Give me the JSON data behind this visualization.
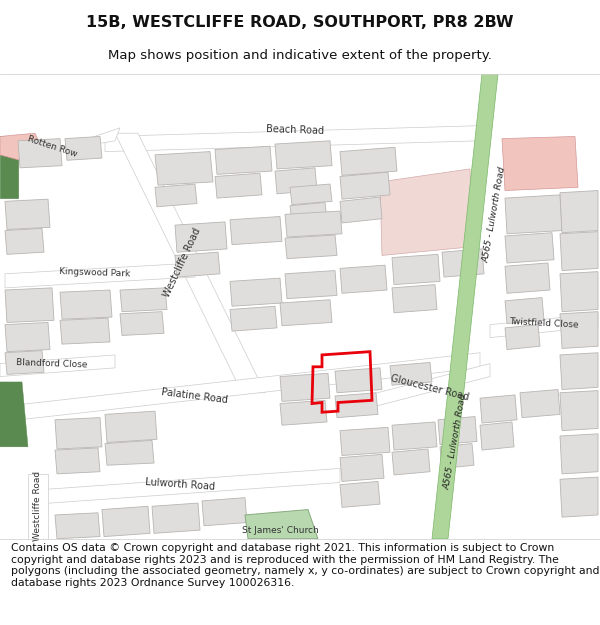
{
  "title": "15B, WESTCLIFFE ROAD, SOUTHPORT, PR8 2BW",
  "subtitle": "Map shows position and indicative extent of the property.",
  "footer": "Contains OS data © Crown copyright and database right 2021. This information is subject to Crown copyright and database rights 2023 and is reproduced with the permission of HM Land Registry. The polygons (including the associated geometry, namely x, y co-ordinates) are subject to Crown copyright and database rights 2023 Ordnance Survey 100026316.",
  "map_bg": "#f7f6f4",
  "road_color": "#ffffff",
  "road_edge_color": "#cccccc",
  "building_color": "#e0dedd",
  "building_edge_color": "#b8b5b2",
  "green_strip_color": "#aed69a",
  "green_strip_edge": "#7ab868",
  "highlight_red": "#e8000a",
  "pink_block_color": "#f2c4be",
  "pink_block_edge": "#d49898",
  "green_area_color": "#b8d8b0",
  "green_area_edge": "#88aa80",
  "dark_green_color": "#5a8a50",
  "title_fontsize": 11.5,
  "subtitle_fontsize": 9.5,
  "footer_fontsize": 7.8
}
